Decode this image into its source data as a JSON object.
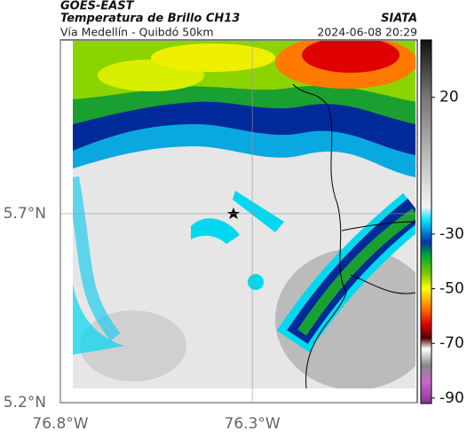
{
  "header": {
    "source": "GOES-EAST",
    "title": "Temperatura de Brillo CH13",
    "org": "SIATA",
    "subtitle": "Vía Medellín - Quibdó 50km",
    "datetime": "2024-06-08 20:29"
  },
  "map": {
    "xlim": [
      -76.8,
      -75.87
    ],
    "ylim": [
      5.2,
      6.16
    ],
    "xticks": [
      {
        "value": -76.8,
        "label": "76.8°W"
      },
      {
        "value": -76.3,
        "label": "76.3°W"
      }
    ],
    "yticks": [
      {
        "value": 5.7,
        "label": "5.7°N"
      },
      {
        "value": 5.2,
        "label": "5.2°N"
      }
    ],
    "colorbar": {
      "lim": [
        -92,
        41
      ],
      "ticks": [
        20,
        -30,
        -50,
        -70,
        -90
      ]
    }
  }
}
